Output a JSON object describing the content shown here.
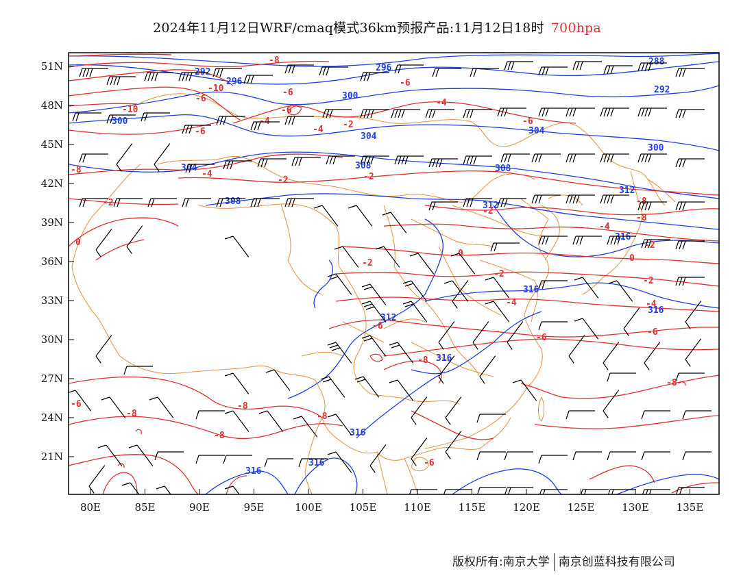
{
  "title": {
    "main": "2024年11月12日WRF/cmaq模式36km预报产品:11月12日18时",
    "level": "700hpa"
  },
  "axes": {
    "lat_labels": [
      "51N",
      "48N",
      "45N",
      "42N",
      "39N",
      "36N",
      "33N",
      "30N",
      "27N",
      "24N",
      "21N"
    ],
    "lon_labels": [
      "80E",
      "85E",
      "90E",
      "95E",
      "100E",
      "105E",
      "110E",
      "115E",
      "120E",
      "125E",
      "130E",
      "135E"
    ]
  },
  "colors": {
    "height_contour": "#2040e0",
    "temp_contour": "#e03030",
    "border": "#e09040",
    "wind_barb": "#000000",
    "level_text": "#e03030"
  },
  "contour_labels": {
    "height": [
      "292",
      "296",
      "296",
      "288",
      "292",
      "300",
      "300",
      "304",
      "304",
      "304",
      "300",
      "308",
      "308",
      "308",
      "312",
      "312",
      "316",
      "316",
      "312",
      "316",
      "316",
      "316",
      "316"
    ],
    "temperature": [
      "-8",
      "-10",
      "-6",
      "-6",
      "-10",
      "-6",
      "-4",
      "-4",
      "-4",
      "-2",
      "-2",
      "-6",
      "-8",
      "-8",
      "-8",
      "-4",
      "-2",
      "-6",
      "-4",
      "-2",
      "-2",
      "-6",
      "-2",
      "0",
      "-2",
      "-4",
      "-2",
      "0",
      "0",
      "-2",
      "-4",
      "-6",
      "-6",
      "-8",
      "-6",
      "-8",
      "-6",
      "-8",
      "-8",
      "-8",
      "-8",
      "-6"
    ]
  },
  "footer": {
    "left": "版权所有:南京大学",
    "right": "南京创蓝科技有限公司"
  }
}
